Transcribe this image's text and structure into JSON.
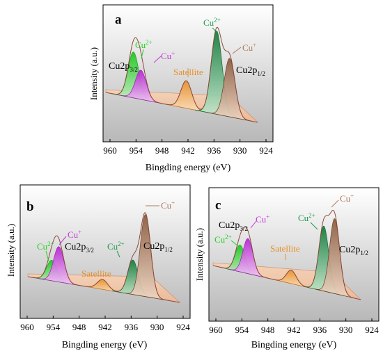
{
  "figure": {
    "x_axis_label": "Bingding energy (eV)",
    "y_axis_label": "Intensity (a.u.)",
    "x_ticks": [
      "960",
      "954",
      "948",
      "942",
      "936",
      "930",
      "924"
    ],
    "peak_colors": {
      "cu2_3_2": "#1fd21f",
      "cu1_3_2": "#c23ad8",
      "satellite": "#f0a040",
      "cu2_1_2": "#1e9a4a",
      "cu1_1_2": "#b0785a",
      "background_fill": "#f7c8a8",
      "envelope": "#8a4a3a"
    }
  },
  "chart_data": [
    {
      "panel": "a",
      "type": "line",
      "xlabel": "Bingding energy (eV)",
      "ylabel": "Intensity (a.u.)",
      "xlim": [
        960,
        924
      ],
      "x_reversed": true,
      "grid": false,
      "labels": {
        "panel": "a",
        "cu2_3_2_prefix": "Cu",
        "cu2_3_2_sup": "2+",
        "cu1_3_2_prefix": "Cu",
        "cu1_3_2_sup": "+",
        "satellite": "Satellite",
        "cu2p32_main": "Cu2p",
        "cu2p32_sub": "3/2",
        "cu2_1_2_prefix": "Cu",
        "cu2_1_2_sup": "2+",
        "cu1_1_2_prefix": "Cu",
        "cu1_1_2_sup": "+",
        "cu2p12_main": "Cu2p",
        "cu2p12_sub": "1/2"
      },
      "peaks": [
        {
          "name": "Cu2+ 2p3/2",
          "x": 954.6,
          "height": 0.55
        },
        {
          "name": "Cu+ 2p3/2",
          "x": 952.9,
          "height": 0.35
        },
        {
          "name": "Satellite",
          "x": 942.4,
          "height": 0.33
        },
        {
          "name": "Cu2+ 2p1/2",
          "x": 935.4,
          "height": 1.0
        },
        {
          "name": "Cu+ 2p1/2",
          "x": 932.4,
          "height": 0.7
        }
      ]
    },
    {
      "panel": "b",
      "type": "line",
      "xlabel": "Bingding energy (eV)",
      "ylabel": "Intensity (a.u.)",
      "xlim": [
        960,
        924
      ],
      "x_reversed": true,
      "grid": false,
      "labels": {
        "panel": "b",
        "cu2_3_2_prefix": "Cu",
        "cu2_3_2_sup": "2+",
        "cu1_3_2_prefix": "Cu",
        "cu1_3_2_sup": "+",
        "satellite": "Satellite",
        "cu2p32_main": "Cu2p",
        "cu2p32_sub": "3/2",
        "cu2_1_2_prefix": "Cu",
        "cu2_1_2_sup": "2+",
        "cu1_1_2_prefix": "Cu",
        "cu1_1_2_sup": "+",
        "cu2p12_main": "Cu2p",
        "cu2p12_sub": "1/2"
      },
      "peaks": [
        {
          "name": "Cu2+ 2p3/2",
          "x": 954.3,
          "height": 0.25
        },
        {
          "name": "Cu+ 2p3/2",
          "x": 952.7,
          "height": 0.43
        },
        {
          "name": "Satellite",
          "x": 942.6,
          "height": 0.12
        },
        {
          "name": "Cu2+ 2p1/2",
          "x": 935.6,
          "height": 0.42
        },
        {
          "name": "Cu+ 2p1/2",
          "x": 932.7,
          "height": 1.0
        }
      ]
    },
    {
      "panel": "c",
      "type": "line",
      "xlabel": "Bingding energy (eV)",
      "ylabel": "Intensity (a.u.)",
      "xlim": [
        960,
        924
      ],
      "x_reversed": true,
      "grid": false,
      "labels": {
        "panel": "c",
        "cu2_3_2_prefix": "Cu",
        "cu2_3_2_sup": "2+",
        "cu1_3_2_prefix": "Cu",
        "cu1_3_2_sup": "+",
        "satellite": "Satellite",
        "cu2p32_main": "Cu2p",
        "cu2p32_sub": "3/2",
        "cu2_1_2_prefix": "Cu",
        "cu2_1_2_sup": "2+",
        "cu1_1_2_prefix": "Cu",
        "cu1_1_2_sup": "+",
        "cu2p12_main": "Cu2p",
        "cu2p12_sub": "1/2"
      },
      "peaks": [
        {
          "name": "Cu2+ 2p3/2",
          "x": 954.4,
          "height": 0.32
        },
        {
          "name": "Cu+ 2p3/2",
          "x": 952.6,
          "height": 0.42
        },
        {
          "name": "Satellite",
          "x": 942.6,
          "height": 0.16
        },
        {
          "name": "Cu2+ 2p1/2",
          "x": 935.1,
          "height": 0.78
        },
        {
          "name": "Cu+ 2p1/2",
          "x": 932.6,
          "height": 0.9
        }
      ]
    }
  ]
}
